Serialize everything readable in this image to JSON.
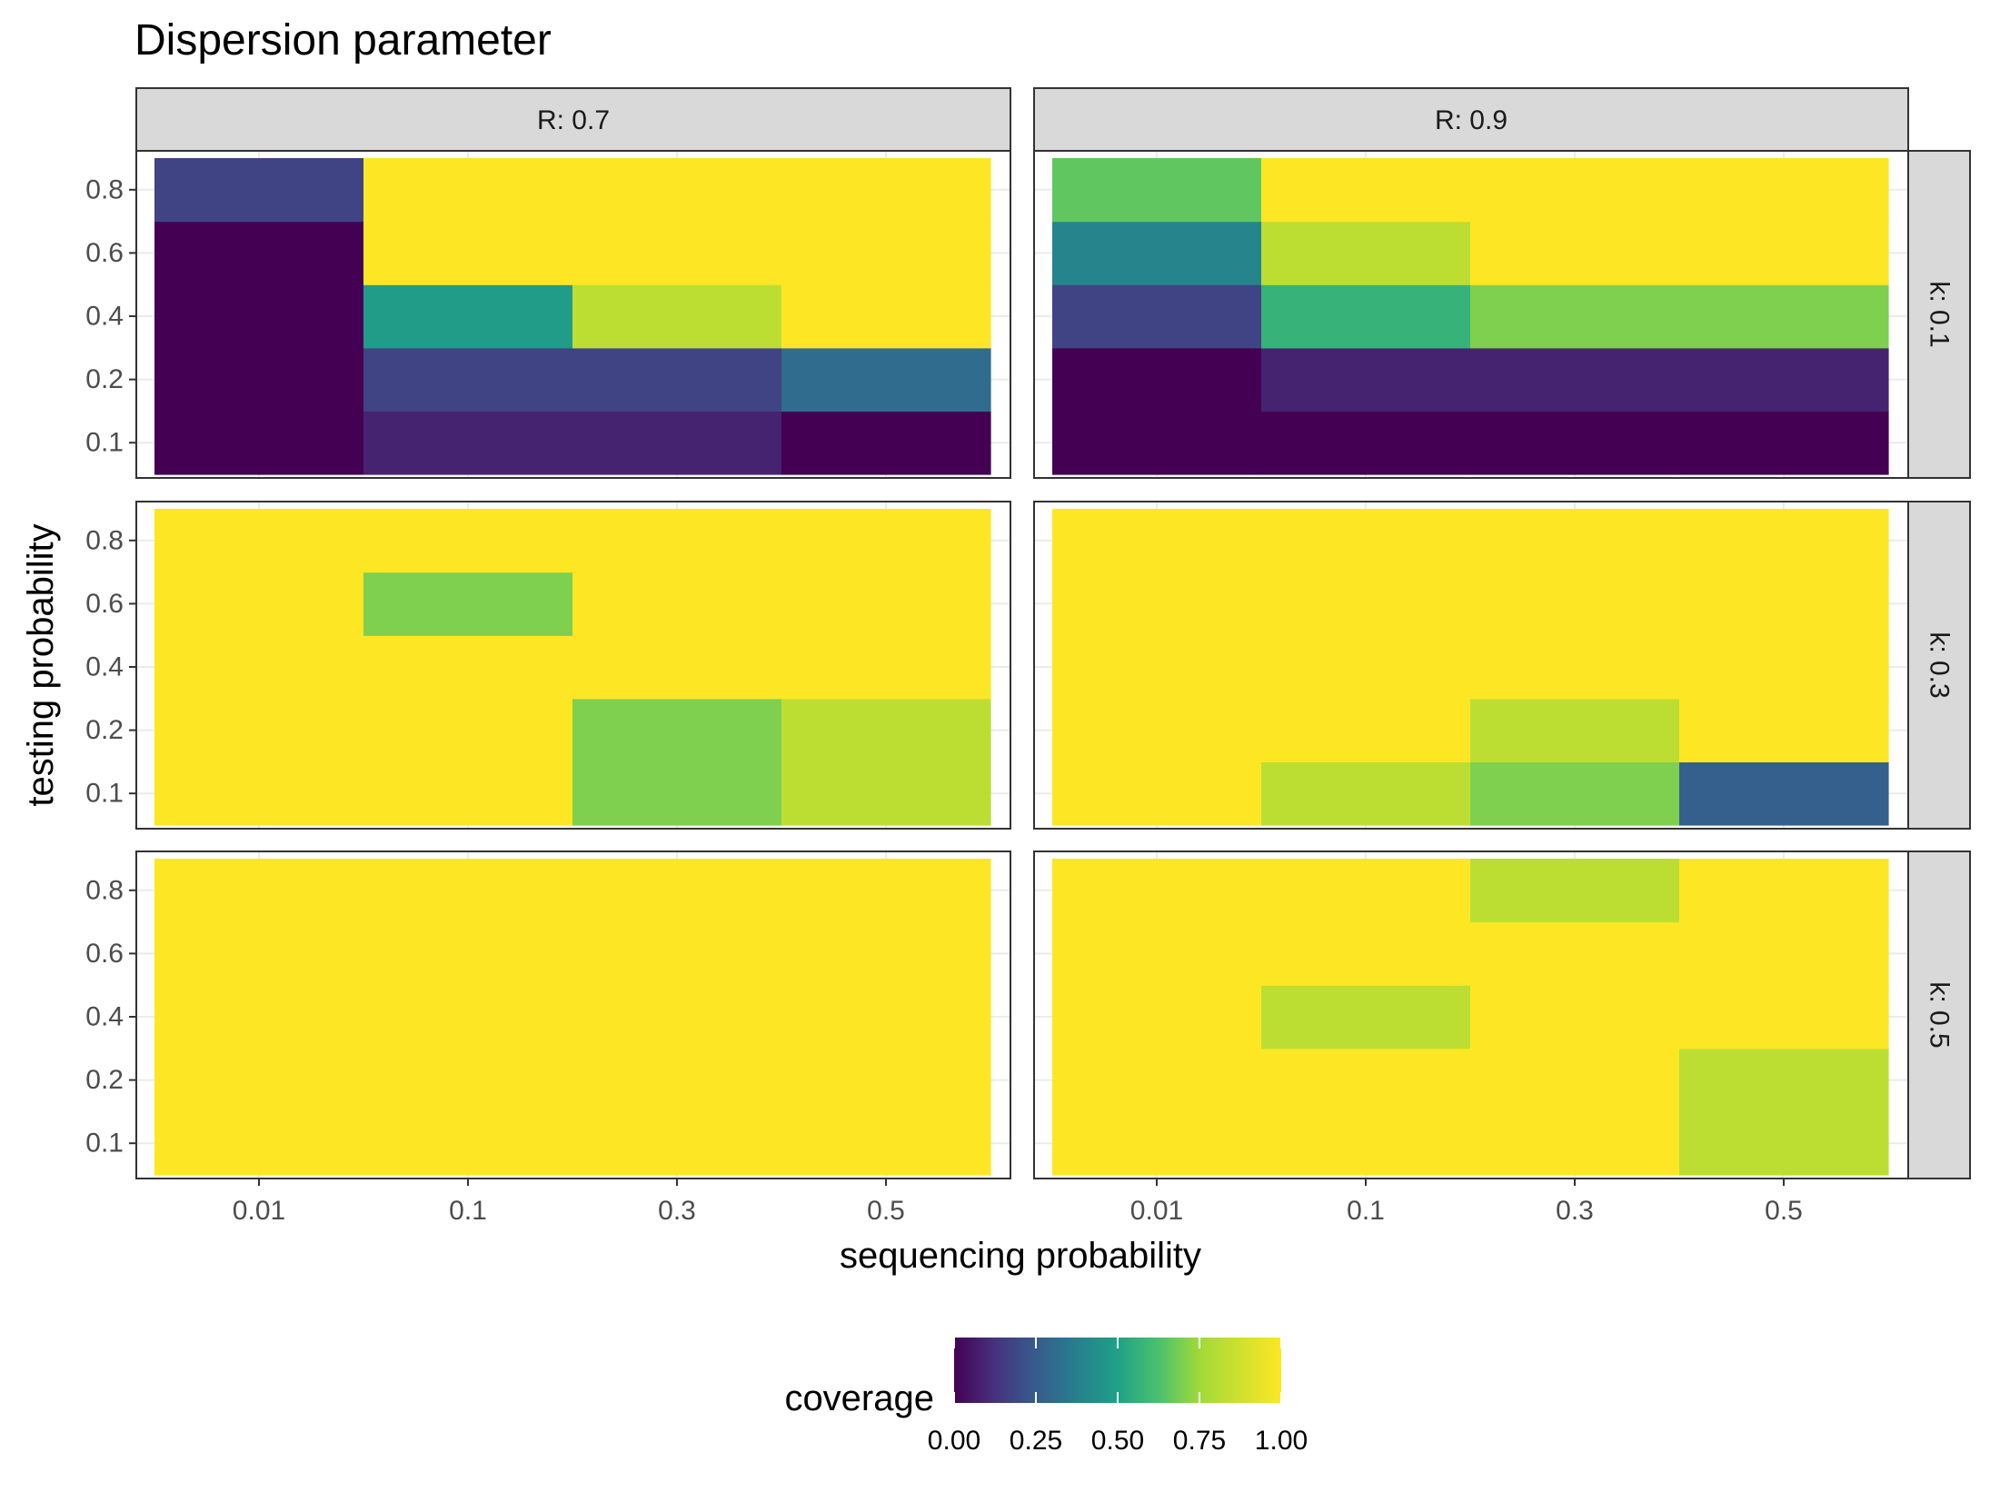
{
  "chart_data": {
    "type": "heatmap",
    "title": "Dispersion parameter",
    "xlabel": "sequencing probability",
    "ylabel": "testing probability",
    "x_categories": [
      "0.01",
      "0.1",
      "0.3",
      "0.5"
    ],
    "y_categories": [
      "0.1",
      "0.2",
      "0.4",
      "0.6",
      "0.8"
    ],
    "column_facet_labels": [
      "R: 0.7",
      "R: 0.9"
    ],
    "row_facet_labels": [
      "k: 0.1",
      "k: 0.3",
      "k: 0.5"
    ],
    "grid": true,
    "legend": {
      "title": "coverage",
      "position": "bottom",
      "ticks": [
        "0.00",
        "0.25",
        "0.50",
        "0.75",
        "1.00"
      ],
      "range": [
        0,
        1
      ],
      "colors": [
        "#440154",
        "#3b528b",
        "#21918c",
        "#5ec962",
        "#fde725"
      ]
    },
    "panels": [
      {
        "facet_col": "R: 0.7",
        "facet_row": "k: 0.1",
        "values": [
          [
            0,
            0.1,
            0.1,
            0
          ],
          [
            0,
            0.2,
            0.2,
            0.35
          ],
          [
            0,
            0.55,
            0.9,
            1
          ],
          [
            0,
            1,
            1,
            1
          ],
          [
            0.2,
            1,
            1,
            1
          ]
        ]
      },
      {
        "facet_col": "R: 0.9",
        "facet_row": "k: 0.1",
        "values": [
          [
            0,
            0,
            0,
            0
          ],
          [
            0,
            0.1,
            0.1,
            0.1
          ],
          [
            0.2,
            0.65,
            0.8,
            0.8
          ],
          [
            0.45,
            0.9,
            1,
            1
          ],
          [
            0.75,
            1,
            1,
            1
          ]
        ]
      },
      {
        "facet_col": "R: 0.7",
        "facet_row": "k: 0.3",
        "values": [
          [
            1,
            1,
            0.8,
            0.9
          ],
          [
            1,
            1,
            0.8,
            0.9
          ],
          [
            1,
            1,
            1,
            1
          ],
          [
            1,
            0.8,
            1,
            1
          ],
          [
            1,
            1,
            1,
            1
          ]
        ]
      },
      {
        "facet_col": "R: 0.9",
        "facet_row": "k: 0.3",
        "values": [
          [
            1,
            0.9,
            0.8,
            0.3
          ],
          [
            1,
            1,
            0.9,
            1
          ],
          [
            1,
            1,
            1,
            1
          ],
          [
            1,
            1,
            1,
            1
          ],
          [
            1,
            1,
            1,
            1
          ]
        ]
      },
      {
        "facet_col": "R: 0.7",
        "facet_row": "k: 0.5",
        "values": [
          [
            1,
            1,
            1,
            1
          ],
          [
            1,
            1,
            1,
            1
          ],
          [
            1,
            1,
            1,
            1
          ],
          [
            1,
            1,
            1,
            1
          ],
          [
            1,
            1,
            1,
            1
          ]
        ]
      },
      {
        "facet_col": "R: 0.9",
        "facet_row": "k: 0.5",
        "values": [
          [
            1,
            1,
            1,
            0.9
          ],
          [
            1,
            1,
            1,
            0.9
          ],
          [
            1,
            0.9,
            1,
            1
          ],
          [
            1,
            1,
            1,
            1
          ],
          [
            1,
            1,
            0.9,
            1
          ]
        ]
      }
    ]
  }
}
